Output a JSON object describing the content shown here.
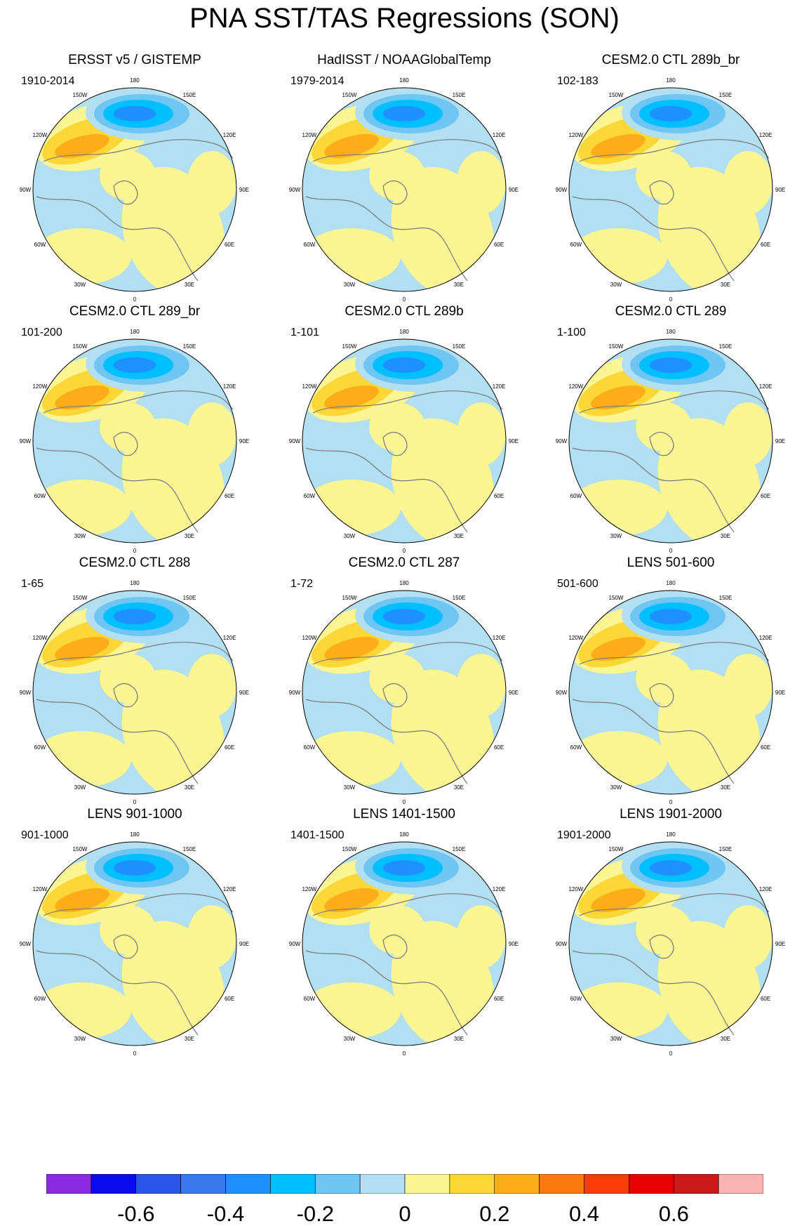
{
  "figure_title": "PNA SST/TAS Regressions (SON)",
  "panels": [
    {
      "title": "ERSST v5 / GISTEMP",
      "period": "1910-2014"
    },
    {
      "title": "HadISST / NOAAGlobalTemp",
      "period": "1979-2014"
    },
    {
      "title": "CESM2.0 CTL 289b_br",
      "period": "102-183"
    },
    {
      "title": "CESM2.0 CTL 289_br",
      "period": "101-200"
    },
    {
      "title": "CESM2.0 CTL 289b",
      "period": "1-101"
    },
    {
      "title": "CESM2.0 CTL 289",
      "period": "1-100"
    },
    {
      "title": "CESM2.0 CTL 288",
      "period": "1-65"
    },
    {
      "title": "CESM2.0 CTL 287",
      "period": "1-72"
    },
    {
      "title": "LENS 501-600",
      "period": "501-600"
    },
    {
      "title": "LENS 901-1000",
      "period": "901-1000"
    },
    {
      "title": "LENS 1401-1500",
      "period": "1401-1500"
    },
    {
      "title": "LENS 1901-2000",
      "period": "1901-2000"
    }
  ],
  "longitude_labels": [
    "180",
    "150E",
    "120E",
    "90E",
    "60E",
    "30E",
    "0",
    "30W",
    "60W",
    "90W",
    "120W",
    "150W"
  ],
  "colorbar": {
    "colors": [
      "#8a2be2",
      "#0b0bf0",
      "#2a55e6",
      "#3a78ee",
      "#1e90ff",
      "#00bfff",
      "#6fc6f2",
      "#b3dff3",
      "#fbf594",
      "#fdd638",
      "#fdad18",
      "#fb7a10",
      "#fa3c0a",
      "#e70000",
      "#c91b1b",
      "#fbb4b4"
    ],
    "labels": [
      "-0.6",
      "-0.4",
      "-0.2",
      "0",
      "0.2",
      "0.4",
      "0.6"
    ]
  }
}
